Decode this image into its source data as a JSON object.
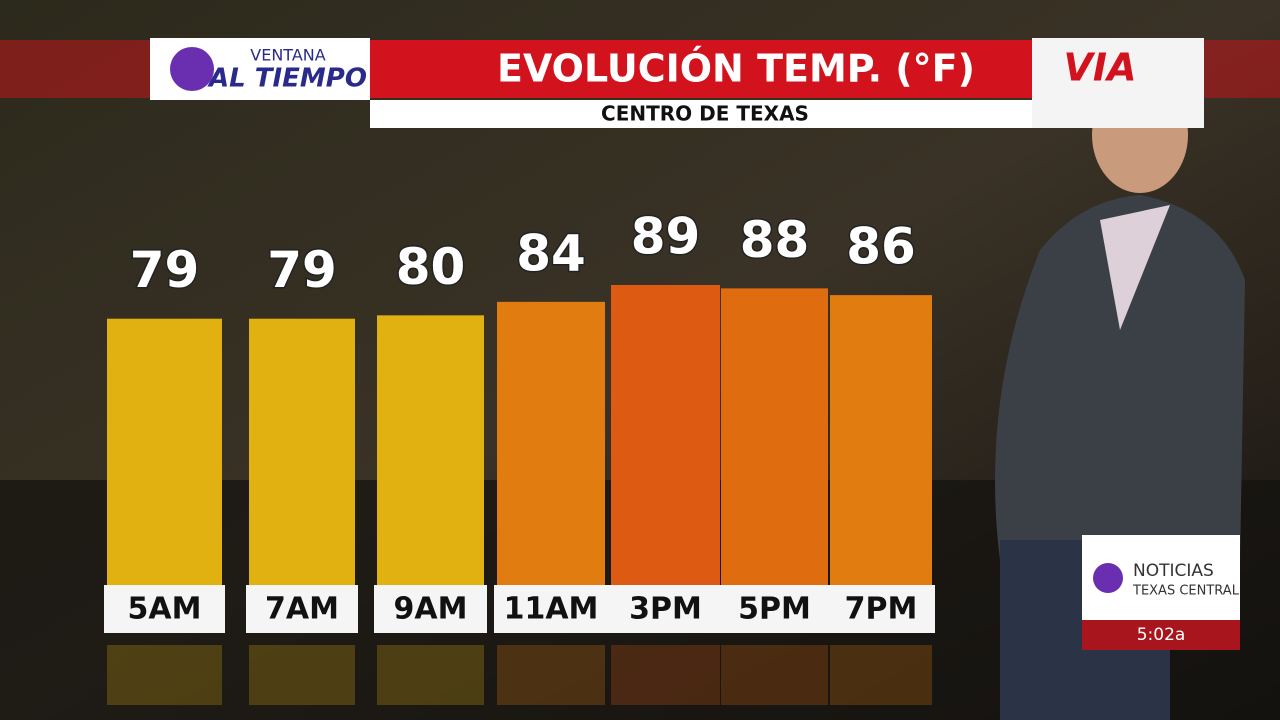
{
  "header": {
    "logo_top": "VENTANA",
    "logo_bottom": "AL TIEMPO",
    "sponsor": "VIA"
  },
  "chart_data": {
    "type": "bar",
    "title": "EVOLUCIÓN TEMP. (°F)",
    "subtitle": "CENTRO DE TEXAS",
    "categories": [
      "5AM",
      "7AM",
      "9AM",
      "11AM",
      "3PM",
      "5PM",
      "7PM"
    ],
    "values": [
      79,
      79,
      80,
      84,
      89,
      88,
      86
    ],
    "colors": [
      "#e0b110",
      "#e0b110",
      "#e0b110",
      "#e07c10",
      "#dc5a12",
      "#e06c10",
      "#e07c10"
    ]
  },
  "bug": {
    "name": "NOTICIAS",
    "region": "TEXAS CENTRAL",
    "time": "5:02a"
  }
}
